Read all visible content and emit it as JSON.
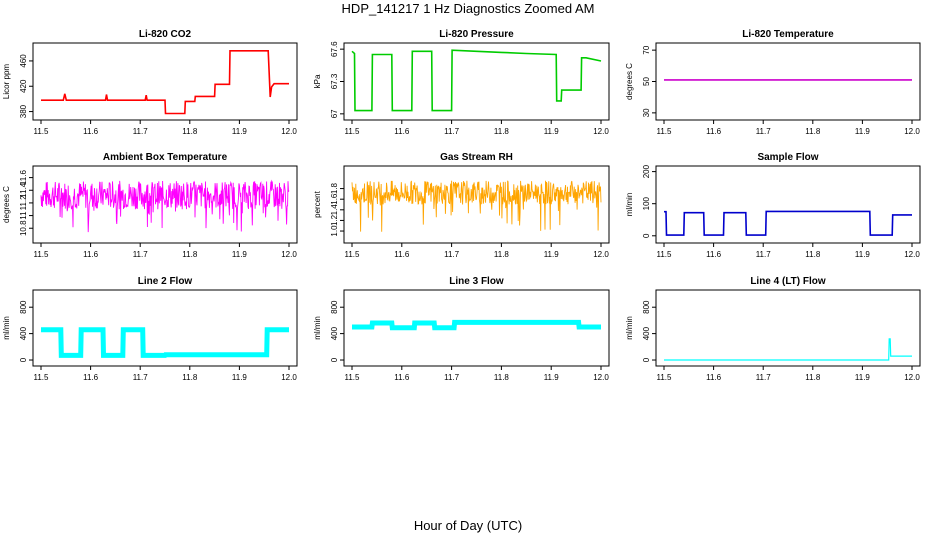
{
  "title": "HDP_141217  1 Hz Diagnostics Zoomed AM",
  "xlabel": "Hour of Day (UTC)",
  "chart_data": [
    {
      "type": "line",
      "title": "Li-820 CO2",
      "ylabel": "Licor ppm",
      "color": "#ff0000",
      "xlim": [
        11.5,
        12.0
      ],
      "ylim": [
        373,
        482
      ],
      "xticks": [
        "11.5",
        "11.6",
        "11.7",
        "11.8",
        "11.9",
        "12.0"
      ],
      "yticks": [
        380,
        420,
        460
      ],
      "series": [
        {
          "x": [
            11.5,
            11.545,
            11.548,
            11.551,
            11.63,
            11.632,
            11.634,
            11.71,
            11.712,
            11.714,
            11.75,
            11.751,
            11.79,
            11.791,
            11.81,
            11.811,
            11.85,
            11.851,
            11.88,
            11.881,
            11.958,
            11.96,
            11.962,
            11.965,
            11.97,
            12.0
          ],
          "y": [
            398,
            398,
            408,
            398,
            398,
            407,
            398,
            398,
            406,
            398,
            398,
            377,
            377,
            396,
            396,
            404,
            404,
            423,
            423,
            476,
            476,
            440,
            403,
            419,
            424,
            424
          ]
        }
      ]
    },
    {
      "type": "line",
      "title": "Li-820 Pressure",
      "ylabel": "kPa",
      "color": "#00cc00",
      "xlim": [
        11.5,
        12.0
      ],
      "ylim": [
        66.98,
        67.62
      ],
      "xticks": [
        "11.5",
        "11.6",
        "11.7",
        "11.8",
        "11.9",
        "12.0"
      ],
      "yticks": [
        67.0,
        67.3,
        67.6
      ],
      "series": [
        {
          "x": [
            11.5,
            11.505,
            11.506,
            11.54,
            11.541,
            11.58,
            11.581,
            11.62,
            11.621,
            11.66,
            11.661,
            11.7,
            11.701,
            11.75,
            11.8,
            11.85,
            11.91,
            11.911,
            11.92,
            11.921,
            11.96,
            11.961,
            11.97,
            12.0
          ],
          "y": [
            67.58,
            67.56,
            67.03,
            67.03,
            67.55,
            67.55,
            67.03,
            67.03,
            67.58,
            67.58,
            67.03,
            67.03,
            67.59,
            67.58,
            67.57,
            67.56,
            67.55,
            67.12,
            67.12,
            67.22,
            67.22,
            67.52,
            67.52,
            67.49
          ]
        }
      ]
    },
    {
      "type": "line",
      "title": "Li-820 Temperature",
      "ylabel": "degrees C",
      "color": "#cc00cc",
      "xlim": [
        11.5,
        12.0
      ],
      "ylim": [
        28,
        72
      ],
      "xticks": [
        "11.5",
        "11.6",
        "11.7",
        "11.8",
        "11.9",
        "12.0"
      ],
      "yticks": [
        30,
        50,
        70
      ],
      "series": [
        {
          "x": [
            11.5,
            12.0
          ],
          "y": [
            51,
            51
          ]
        }
      ]
    },
    {
      "type": "line",
      "title": "Ambient Box Temperature",
      "ylabel": "degrees C",
      "color": "#ff00ff",
      "xlim": [
        11.5,
        12.0
      ],
      "ylim": [
        10.63,
        11.72
      ],
      "xticks": [
        "11.5",
        "11.6",
        "11.7",
        "11.8",
        "11.9",
        "12.0"
      ],
      "yticks": [
        10.8,
        11.0,
        11.2,
        11.4,
        11.6
      ],
      "band": [
        11.1,
        11.55
      ],
      "center": 11.32
    },
    {
      "type": "line",
      "title": "Gas Stream RH",
      "ylabel": "percent",
      "color": "#ffa500",
      "xlim": [
        11.5,
        12.0
      ],
      "ylim": [
        0.85,
        2.15
      ],
      "xticks": [
        "11.5",
        "11.6",
        "11.7",
        "11.8",
        "11.9",
        "12.0"
      ],
      "yticks": [
        1.0,
        1.2,
        1.4,
        1.6,
        1.8
      ],
      "band": [
        1.5,
        1.95
      ],
      "center": 1.72
    },
    {
      "type": "line",
      "title": "Sample Flow",
      "ylabel": "ml/min",
      "color": "#0000cc",
      "xlim": [
        11.5,
        12.0
      ],
      "ylim": [
        -10,
        205
      ],
      "xticks": [
        "11.5",
        "11.6",
        "11.7",
        "11.8",
        "11.9",
        "12.0"
      ],
      "yticks": [
        0,
        100,
        200
      ],
      "series": [
        {
          "x": [
            11.5,
            11.504,
            11.505,
            11.54,
            11.541,
            11.58,
            11.581,
            11.62,
            11.621,
            11.665,
            11.666,
            11.705,
            11.706,
            11.8,
            11.915,
            11.916,
            11.96,
            11.961,
            12.0
          ],
          "y": [
            75,
            75,
            2,
            2,
            72,
            72,
            2,
            2,
            72,
            72,
            2,
            2,
            76,
            76,
            76,
            2,
            2,
            65,
            65
          ]
        }
      ]
    },
    {
      "type": "line",
      "title": "Line 2 Flow",
      "ylabel": "ml/min",
      "color": "#00ffff",
      "xlim": [
        11.5,
        12.0
      ],
      "ylim": [
        -30,
        1000
      ],
      "xticks": [
        "11.5",
        "11.6",
        "11.7",
        "11.8",
        "11.9",
        "12.0"
      ],
      "yticks": [
        0,
        400,
        800
      ],
      "series": [
        {
          "x": [
            11.5,
            11.54,
            11.541,
            11.58,
            11.581,
            11.625,
            11.626,
            11.665,
            11.666,
            11.705,
            11.706,
            11.75,
            11.751,
            11.955,
            11.956,
            12.0
          ],
          "y": [
            460,
            460,
            70,
            70,
            460,
            460,
            70,
            70,
            460,
            460,
            70,
            70,
            80,
            80,
            460,
            460
          ]
        }
      ]
    },
    {
      "type": "line",
      "title": "Line 3 Flow",
      "ylabel": "ml/min",
      "color": "#00ffff",
      "xlim": [
        11.5,
        12.0
      ],
      "ylim": [
        -30,
        1000
      ],
      "xticks": [
        "11.5",
        "11.6",
        "11.7",
        "11.8",
        "11.9",
        "12.0"
      ],
      "yticks": [
        0,
        400,
        800
      ],
      "series": [
        {
          "x": [
            11.5,
            11.54,
            11.541,
            11.58,
            11.581,
            11.625,
            11.626,
            11.665,
            11.666,
            11.705,
            11.706,
            11.955,
            11.956,
            12.0
          ],
          "y": [
            500,
            500,
            560,
            560,
            490,
            490,
            560,
            560,
            490,
            490,
            570,
            570,
            500,
            500
          ]
        }
      ]
    },
    {
      "type": "line",
      "title": "Line 4 (LT) Flow",
      "ylabel": "ml/min",
      "color": "#00ffff",
      "xlim": [
        11.5,
        12.0
      ],
      "ylim": [
        -30,
        1000
      ],
      "xticks": [
        "11.5",
        "11.6",
        "11.7",
        "11.8",
        "11.9",
        "12.0"
      ],
      "yticks": [
        0,
        400,
        800
      ],
      "series": [
        {
          "x": [
            11.5,
            11.953,
            11.954,
            11.956,
            11.957,
            12.0
          ],
          "y": [
            0,
            0,
            320,
            320,
            60,
            60
          ]
        }
      ]
    }
  ]
}
